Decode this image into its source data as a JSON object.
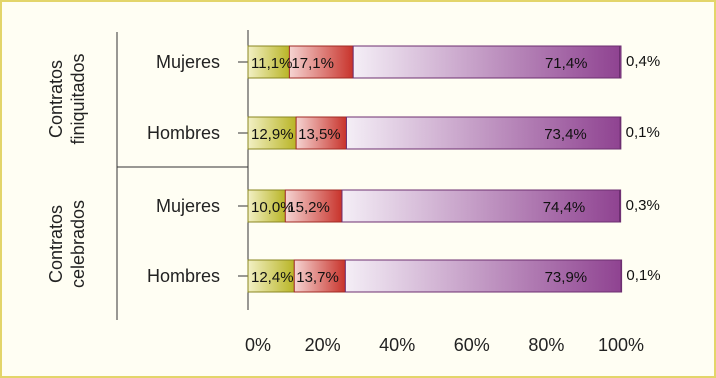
{
  "chart_data": {
    "type": "bar",
    "orientation": "horizontal",
    "stacked": true,
    "groups": [
      {
        "label_lines": [
          "Contratos",
          "finiquitados"
        ],
        "categories": [
          "Mujeres",
          "Hombres"
        ]
      },
      {
        "label_lines": [
          "Contratos",
          "celebrados"
        ],
        "categories": [
          "Mujeres",
          "Hombres"
        ]
      }
    ],
    "categories": [
      "Mujeres",
      "Hombres",
      "Mujeres",
      "Hombres"
    ],
    "series": [
      {
        "color_from": "#f2f0c4",
        "color_to": "#b9b526",
        "values": [
          11.1,
          12.9,
          10.0,
          12.4
        ]
      },
      {
        "color_from": "#f5d4d2",
        "color_to": "#c8332b",
        "values": [
          17.1,
          13.5,
          15.2,
          13.7
        ]
      },
      {
        "color_from": "#f4eef6",
        "color_to": "#8f4391",
        "values": [
          71.4,
          73.4,
          74.4,
          73.9
        ]
      },
      {
        "color_from": "#8f4391",
        "color_to": "#8f4391",
        "values": [
          0.4,
          0.1,
          0.3,
          0.1
        ]
      }
    ],
    "labels": [
      [
        "11,1%",
        "17,1%",
        "71,4%",
        "0,4%"
      ],
      [
        "12,9%",
        "13,5%",
        "73,4%",
        "0,1%"
      ],
      [
        "10,0%",
        "15,2%",
        "74,4%",
        "0,3%"
      ],
      [
        "12,4%",
        "13,7%",
        "73,9%",
        "0,1%"
      ]
    ],
    "x_ticks": [
      0,
      20,
      40,
      60,
      80,
      100
    ],
    "x_tick_labels": [
      "0%",
      "20%",
      "40%",
      "60%",
      "80%",
      "100%"
    ],
    "xlim": [
      0,
      100
    ],
    "grid": false
  }
}
